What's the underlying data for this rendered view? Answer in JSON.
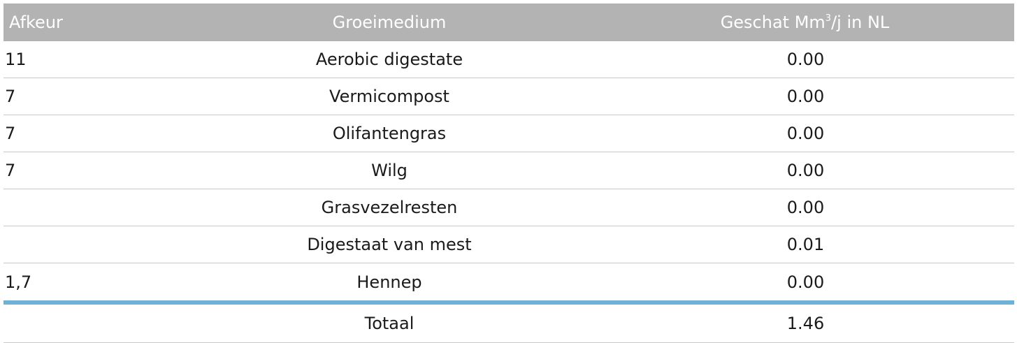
{
  "table": {
    "headers": {
      "afkeur": "Afkeur",
      "groeimedium": "Groeimedium",
      "geschat_prefix": "Geschat Mm",
      "geschat_sup": "3",
      "geschat_suffix": "/j in NL"
    },
    "rows": [
      {
        "afkeur": "11",
        "groeimedium": "Aerobic digestate",
        "geschat": "0.00"
      },
      {
        "afkeur": "7",
        "groeimedium": "Vermicompost",
        "geschat": "0.00"
      },
      {
        "afkeur": "7",
        "groeimedium": "Olifantengras",
        "geschat": "0.00"
      },
      {
        "afkeur": "7",
        "groeimedium": "Wilg",
        "geschat": "0.00"
      },
      {
        "afkeur": "",
        "groeimedium": "Grasvezelresten",
        "geschat": "0.00"
      },
      {
        "afkeur": "",
        "groeimedium": "Digestaat van mest",
        "geschat": "0.01"
      },
      {
        "afkeur": "1,7",
        "groeimedium": "Hennep",
        "geschat": "0.00"
      }
    ],
    "total": {
      "afkeur": "",
      "label": "Totaal",
      "value": "1.46"
    },
    "colors": {
      "header_bg": "#b3b3b3",
      "header_text": "#ffffff",
      "total_separator": "#6fb0d6",
      "row_border": "#c8c8c8"
    }
  }
}
